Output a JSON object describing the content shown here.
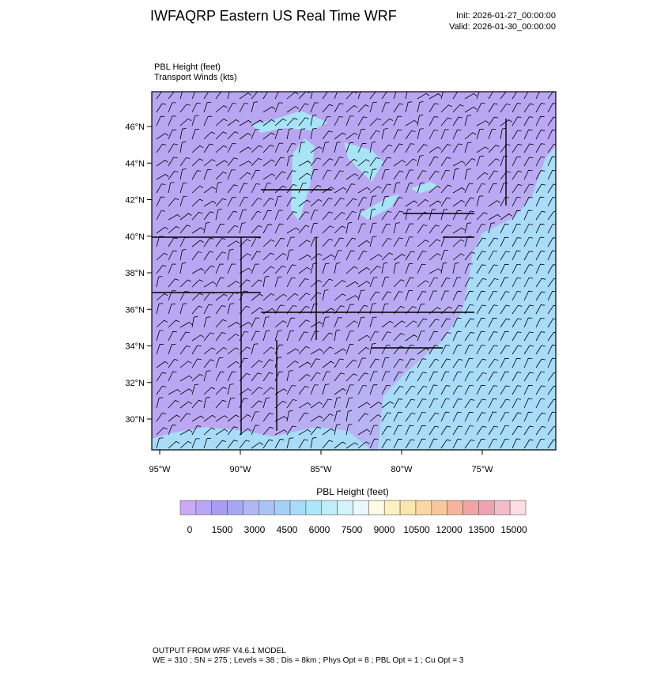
{
  "header": {
    "title": "IWFAQRP Eastern US Real Time WRF",
    "init": "Init: 2026-01-27_00:00:00",
    "valid": "Valid: 2026-01-30_00:00:00"
  },
  "subtitle": {
    "line1": "PBL Height   (feet)",
    "line2": "Transport Winds   (kts)"
  },
  "map": {
    "lat_labels": [
      "46°N",
      "44°N",
      "42°N",
      "40°N",
      "38°N",
      "36°N",
      "34°N",
      "32°N",
      "30°N"
    ],
    "lon_labels": [
      "95°W",
      "90°W",
      "85°W",
      "80°W",
      "75°W"
    ]
  },
  "colorbar": {
    "title": "PBL Height  (feet)",
    "labels": [
      "0",
      "1500",
      "3000",
      "4500",
      "6000",
      "7500",
      "9000",
      "10500",
      "12000",
      "13500",
      "15000"
    ],
    "colors": [
      "#cba9f7",
      "#b9a4f5",
      "#a99cf2",
      "#a6a6f4",
      "#b0b8f2",
      "#a9c4f4",
      "#a4d0f6",
      "#a6dcf8",
      "#aee6f9",
      "#bfeefa",
      "#d5f3fb",
      "#eaf8fc",
      "#fffbe6",
      "#fff1bf",
      "#fde6ad",
      "#fbd8a3",
      "#f9c79e",
      "#f7b49a",
      "#f4a3a3",
      "#eea3b0",
      "#f2bcc8",
      "#fbdde3"
    ]
  },
  "footer": {
    "line1": "OUTPUT FROM WRF V4.6.1 MODEL",
    "line2": "WE = 310 ; SN = 275 ; Levels = 38 ; Dis = 8km ; Phys Opt = 8 ; PBL Opt = 1 ; Cu Opt = 3"
  }
}
